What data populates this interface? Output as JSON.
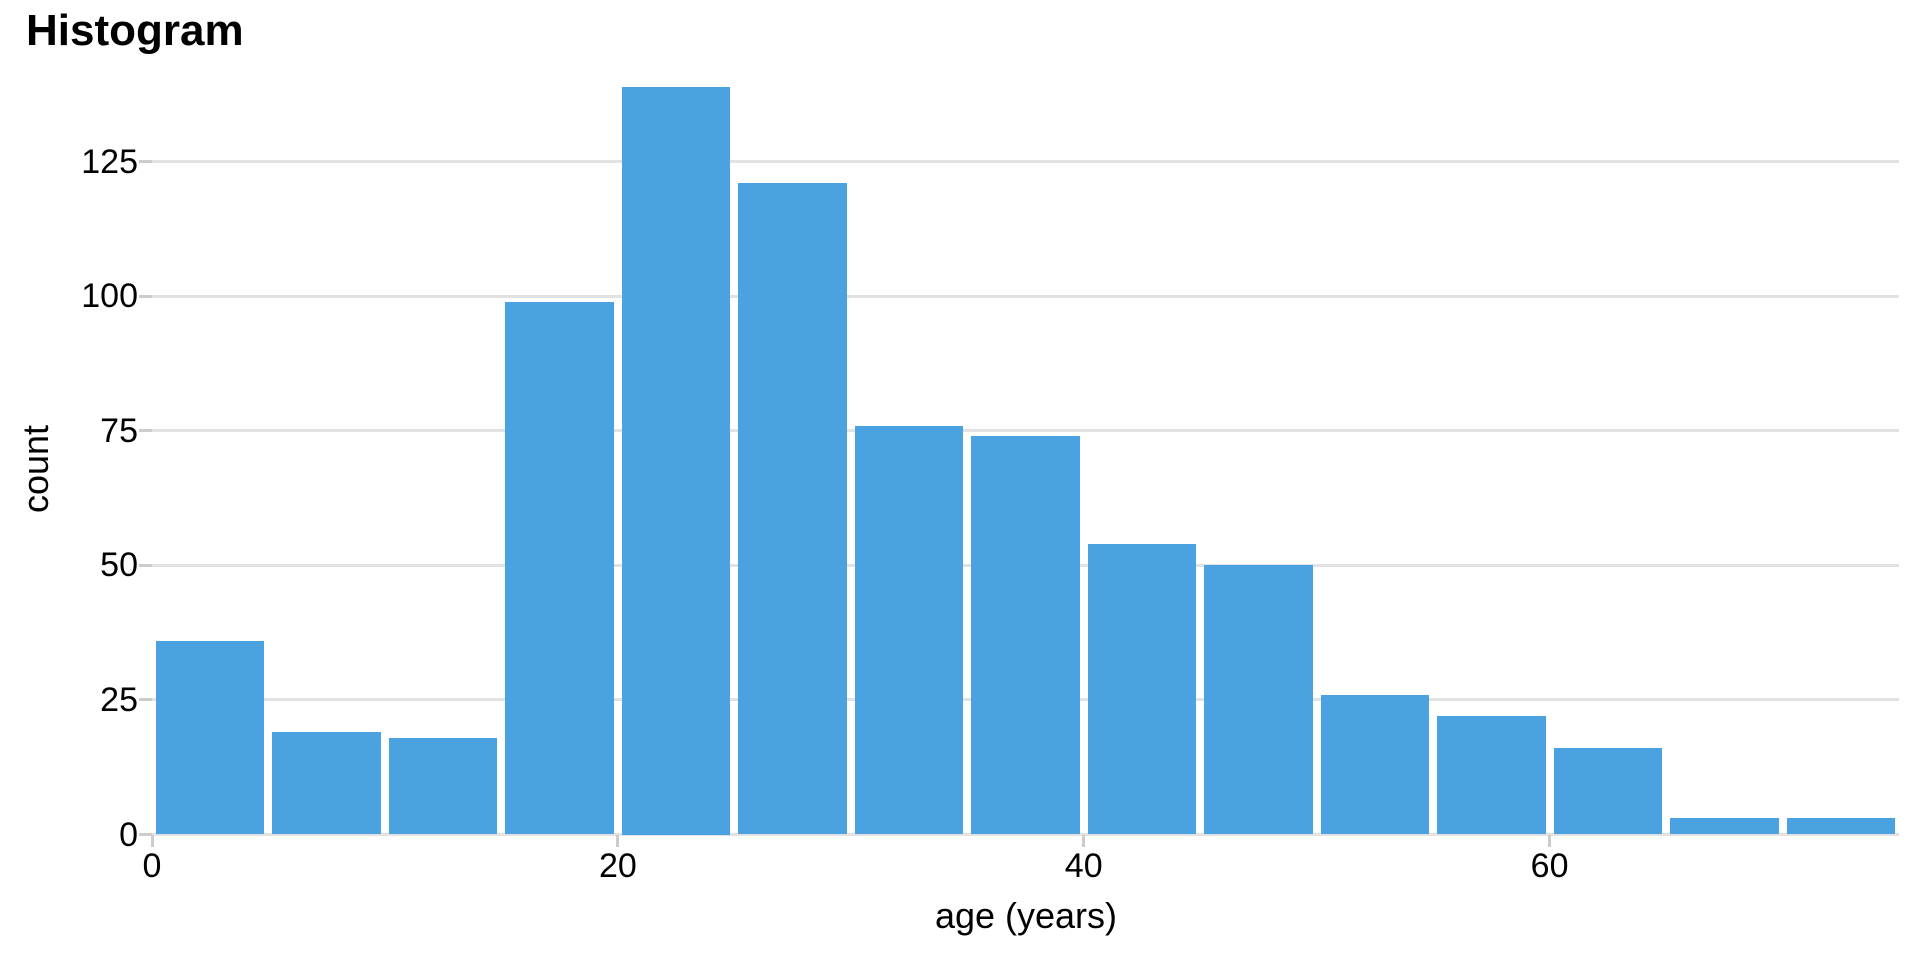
{
  "colors": {
    "bar": "#4aa3e0",
    "gridline": "#e2e2e2",
    "tick": "#cccccc",
    "text": "#000000"
  },
  "chart_data": {
    "type": "bar",
    "subtype": "histogram",
    "title": "Histogram",
    "xlabel": "age (years)",
    "ylabel": "count",
    "grid": "horizontal",
    "legend": "none",
    "bin_width": 5,
    "bins": [
      {
        "x0": 0,
        "x1": 5,
        "count": 36
      },
      {
        "x0": 5,
        "x1": 10,
        "count": 19
      },
      {
        "x0": 10,
        "x1": 15,
        "count": 18
      },
      {
        "x0": 15,
        "x1": 20,
        "count": 99
      },
      {
        "x0": 20,
        "x1": 25,
        "count": 139
      },
      {
        "x0": 25,
        "x1": 30,
        "count": 121
      },
      {
        "x0": 30,
        "x1": 35,
        "count": 76
      },
      {
        "x0": 35,
        "x1": 40,
        "count": 74
      },
      {
        "x0": 40,
        "x1": 45,
        "count": 54
      },
      {
        "x0": 45,
        "x1": 50,
        "count": 50
      },
      {
        "x0": 50,
        "x1": 55,
        "count": 26
      },
      {
        "x0": 55,
        "x1": 60,
        "count": 22
      },
      {
        "x0": 60,
        "x1": 65,
        "count": 16
      },
      {
        "x0": 65,
        "x1": 70,
        "count": 3
      },
      {
        "x0": 70,
        "x1": 75,
        "count": 3
      }
    ],
    "xticks": [
      0,
      20,
      40,
      60
    ],
    "yticks": [
      0,
      25,
      50,
      75,
      100,
      125
    ],
    "xlim": [
      0,
      75
    ],
    "ylim": [
      0,
      139
    ]
  }
}
